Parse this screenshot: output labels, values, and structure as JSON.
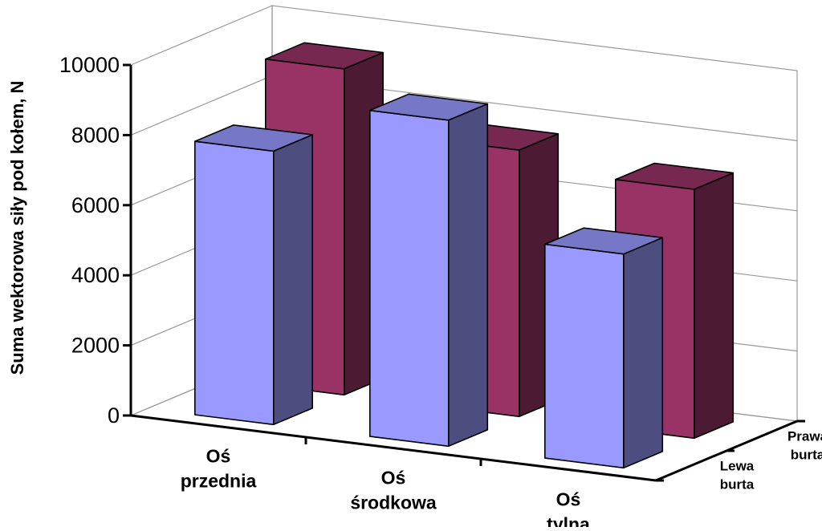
{
  "chart_data": {
    "type": "bar",
    "subtype": "3d-clustered-depth",
    "ylabel": "Suma wektorowa siły pod kołem, N",
    "ylim": [
      0,
      10000
    ],
    "yticks": [
      0,
      2000,
      4000,
      6000,
      8000,
      10000
    ],
    "grid": true,
    "categories": [
      [
        "Oś",
        "przednia"
      ],
      [
        "Oś",
        "środkowa"
      ],
      [
        "Oś",
        "tylna"
      ]
    ],
    "depth_categories": [
      [
        "Lewa",
        "burta"
      ],
      [
        "Prawa",
        "burta"
      ]
    ],
    "series": [
      {
        "name": "Lewa burta",
        "values": [
          7800,
          9300,
          6100
        ],
        "color": "#9999ff"
      },
      {
        "name": "Prawa burta",
        "values": [
          9300,
          7600,
          7100
        ],
        "color": "#993366"
      }
    ]
  }
}
